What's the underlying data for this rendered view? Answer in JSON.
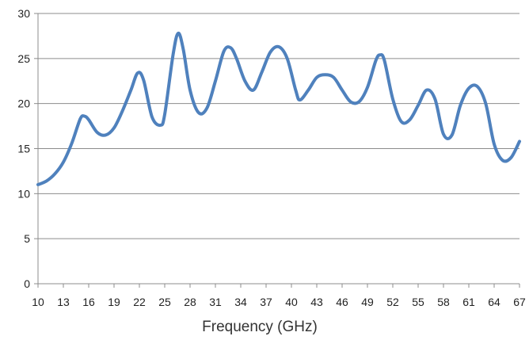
{
  "chart_data": {
    "type": "line",
    "title": "",
    "xlabel": "Frequency (GHz)",
    "ylabel": "",
    "xlim": [
      10,
      67
    ],
    "ylim": [
      0,
      30
    ],
    "grid": true,
    "legend": "none",
    "x_ticks": [
      "10",
      "13",
      "16",
      "19",
      "22",
      "25",
      "28",
      "31",
      "34",
      "37",
      "40",
      "43",
      "46",
      "49",
      "52",
      "55",
      "58",
      "61",
      "64",
      "67"
    ],
    "y_ticks": [
      "0",
      "5",
      "10",
      "15",
      "20",
      "25",
      "30"
    ],
    "colors": {
      "series": "#4f81bd",
      "grid": "#8c8c8c",
      "axis": "#8c8c8c"
    },
    "series": [
      {
        "x": [
          10,
          11,
          12,
          13,
          14,
          15,
          15.5,
          16,
          17,
          18,
          19,
          20,
          21,
          21.8,
          22.5,
          23.5,
          24.5,
          25,
          26,
          26.6,
          27.2,
          28,
          29,
          30,
          31,
          32,
          32.8,
          33.5,
          34.5,
          35.5,
          36.5,
          37.5,
          38.5,
          39.5,
          40.5,
          41,
          42,
          43,
          44,
          45,
          46,
          47,
          48,
          49,
          50,
          50.5,
          51,
          52,
          53,
          54,
          55,
          56,
          57,
          58,
          59,
          60,
          61,
          62,
          63,
          64,
          65,
          66,
          67
        ],
        "values": [
          11,
          11.4,
          12.2,
          13.5,
          15.6,
          18.3,
          18.6,
          18.2,
          16.8,
          16.5,
          17.3,
          19.2,
          21.5,
          23.4,
          22.6,
          18.5,
          17.6,
          18.8,
          25.5,
          27.8,
          26.0,
          21.5,
          19.0,
          19.5,
          22.5,
          25.8,
          26.2,
          25.0,
          22.5,
          21.5,
          23.5,
          25.7,
          26.3,
          25.0,
          21.5,
          20.4,
          21.5,
          22.9,
          23.2,
          22.9,
          21.5,
          20.2,
          20.2,
          21.8,
          24.8,
          25.4,
          24.8,
          20.5,
          18.0,
          18.2,
          19.8,
          21.5,
          20.5,
          16.6,
          16.5,
          19.8,
          21.7,
          21.9,
          20.0,
          15.5,
          13.7,
          14.0,
          15.8
        ]
      }
    ]
  }
}
